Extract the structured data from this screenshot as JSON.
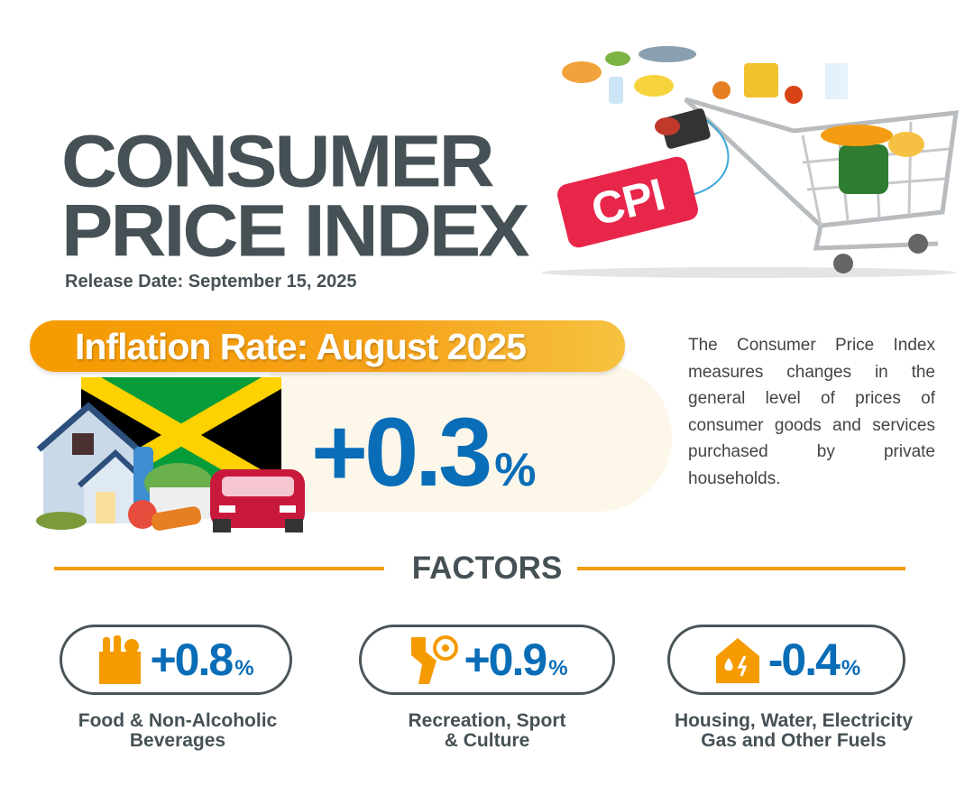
{
  "header": {
    "title_line1": "CONSUMER",
    "title_line2": "PRICE INDEX",
    "release_date": "Release Date: September 15, 2025",
    "tag": "CPI"
  },
  "inflation": {
    "label": "Inflation Rate: August 2025",
    "value": "+0.3",
    "unit": "%"
  },
  "description": "The Consumer Price Index measures changes in the general level of prices of consumer goods and services purchased by private households.",
  "factors": {
    "heading": "FACTORS",
    "items": [
      {
        "value": "+0.8",
        "unit": "%",
        "label_line1": "Food & Non-Alcoholic",
        "label_line2": "Beverages",
        "icon": "grocery-bag-icon"
      },
      {
        "value": "+0.9",
        "unit": "%",
        "label_line1": "Recreation, Sport",
        "label_line2": "& Culture",
        "icon": "sport-icon"
      },
      {
        "value": "-0.4",
        "unit": "%",
        "label_line1": "Housing, Water, Electricity",
        "label_line2": "Gas and Other Fuels",
        "icon": "house-utilities-icon"
      }
    ]
  },
  "colors": {
    "accent": "#f59b00",
    "blue": "#0a6db7",
    "text": "#465156",
    "tag": "#e8264a"
  }
}
